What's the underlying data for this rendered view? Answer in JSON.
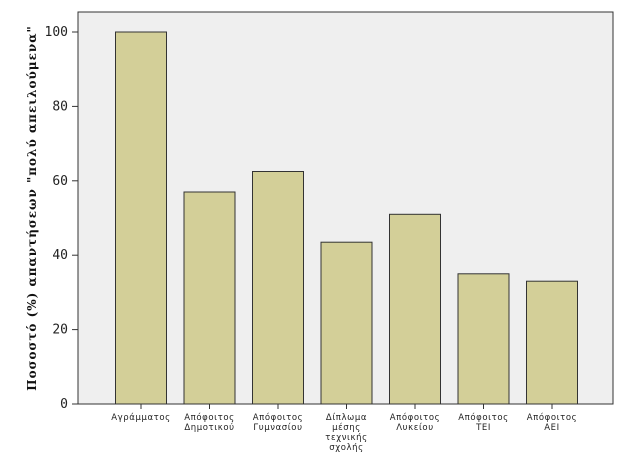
{
  "chart_data": {
    "type": "bar",
    "ylabel": "Ποσοστό  (%)  απαντήσεων  \"πολύ  απειλούμενα\"",
    "xlabel": "",
    "ylim": [
      0,
      105
    ],
    "yticks": [
      0,
      20,
      40,
      60,
      80,
      100
    ],
    "grid": false,
    "colors": {
      "bar_fill": "#d3cf98",
      "bar_stroke": "#333333",
      "plot_background": "#efefef",
      "axis": "#333333"
    },
    "categories": [
      [
        "Αγράμματος"
      ],
      [
        "Απόφοιτος",
        "Δημοτικού"
      ],
      [
        "Απόφοιτος",
        "Γυμνασίου"
      ],
      [
        "Δίπλωμα",
        "μέσης",
        "τεχνικής",
        "σχολής"
      ],
      [
        "Απόφοιτος",
        "Λυκείου"
      ],
      [
        "Απόφοιτος",
        "ΤΕΙ"
      ],
      [
        "Απόφοιτος",
        "ΑΕΙ"
      ]
    ],
    "values": [
      100,
      57,
      62.5,
      43.5,
      51,
      35,
      33
    ]
  }
}
